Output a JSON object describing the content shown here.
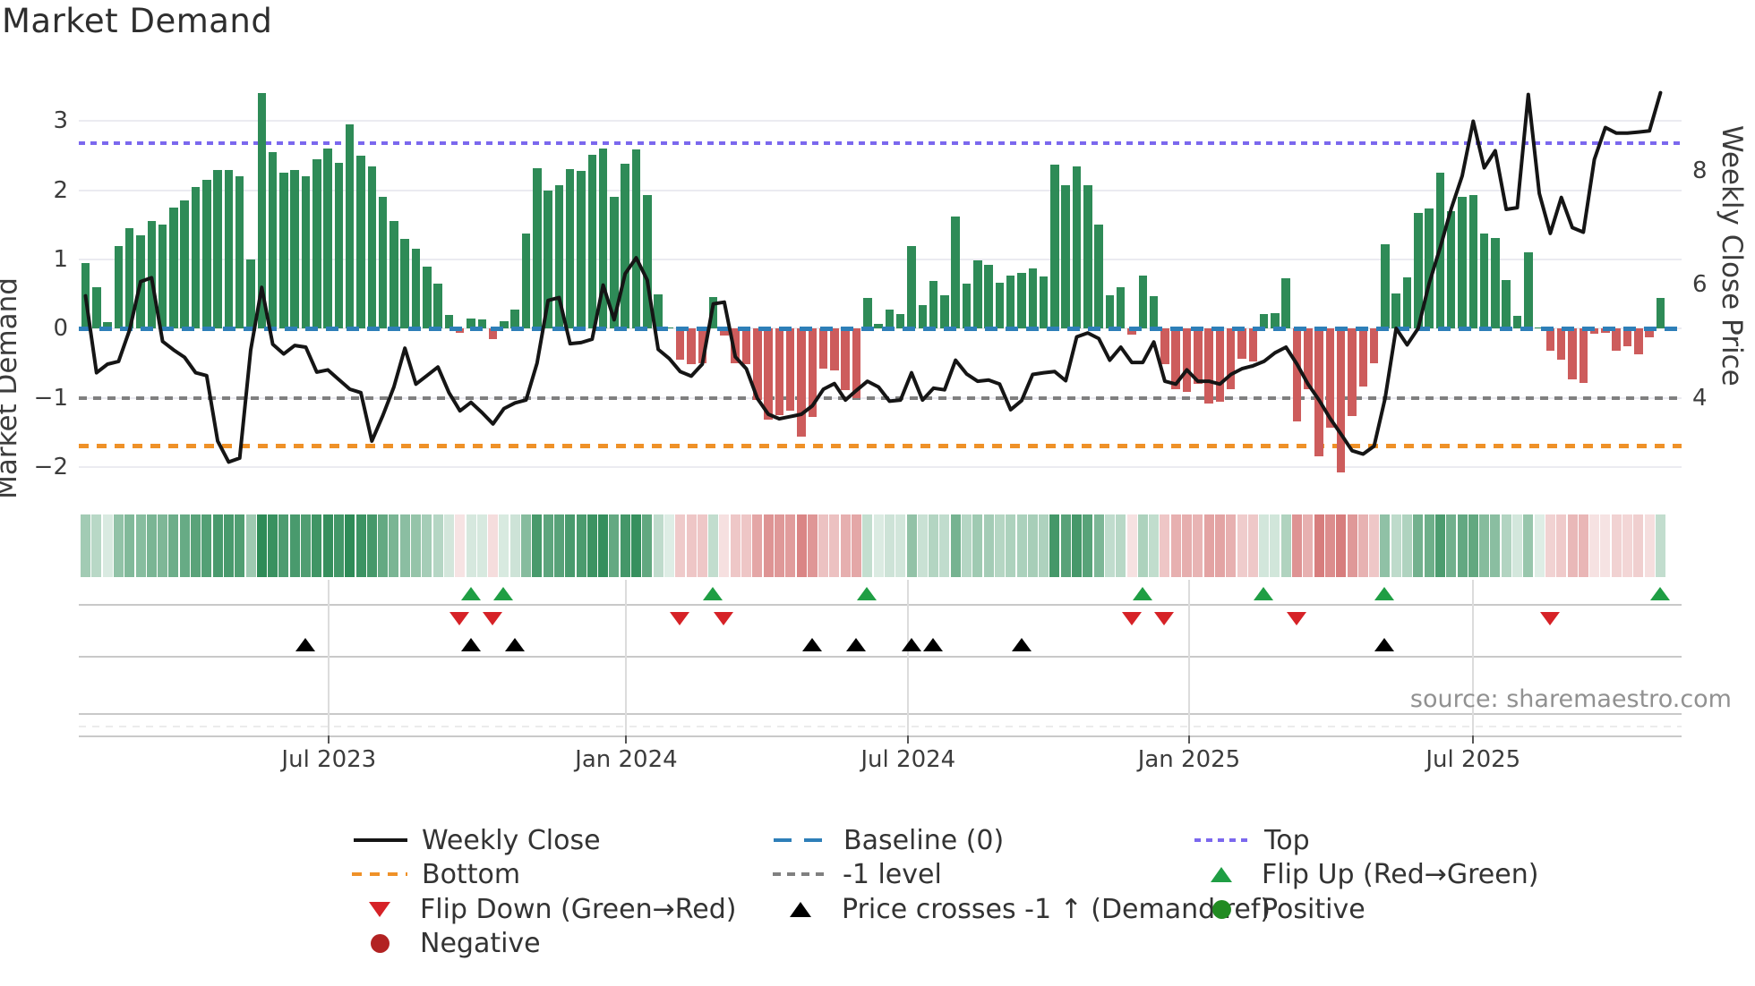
{
  "title": "Market Demand",
  "source_text": "source: sharemaestro.com",
  "axes": {
    "left_label": "Market Demand",
    "right_label": "Weekly Close Price",
    "left_ticks": [
      "3",
      "2",
      "1",
      "0",
      "−1",
      "−2"
    ],
    "left_tick_values": [
      3,
      2,
      1,
      0,
      -1,
      -2
    ],
    "right_ticks": [
      "8",
      "6",
      "4"
    ],
    "right_tick_values": [
      8,
      6,
      4
    ]
  },
  "colors": {
    "positive_bar": "#2e8b57",
    "negative_bar": "#cd5c5c",
    "price_line": "#151515",
    "baseline": "#2e7fb8",
    "top_level": "#7b68ee",
    "bottom_level": "#ef9128",
    "minus_one_level": "#808080",
    "flip_up": "#1f9e44",
    "flip_down": "#d62227",
    "price_cross": "#000000",
    "negative_dot": "#b22222",
    "positive_dot": "#228b22"
  },
  "legend": {
    "col1": [
      {
        "label": "Weekly Close",
        "marker": "line-black"
      },
      {
        "label": "Bottom",
        "marker": "dash-orange"
      },
      {
        "label": "Flip Down (Green→Red)",
        "marker": "tri-down-red"
      },
      {
        "label": "Negative",
        "marker": "circle-darkred"
      }
    ],
    "col2": [
      {
        "label": "Baseline (0)",
        "marker": "dash-blue"
      },
      {
        "label": "-1 level",
        "marker": "dash-gray"
      },
      {
        "label": "Price crosses -1 ↑ (Demand ref)",
        "marker": "tri-up-black"
      }
    ],
    "col3": [
      {
        "label": "Top",
        "marker": "dot-purple"
      },
      {
        "label": "Flip Up (Red→Green)",
        "marker": "tri-up-green"
      },
      {
        "label": "Positive",
        "marker": "circle-green"
      }
    ]
  },
  "chart_data": {
    "type": "bar+line",
    "title": "Market Demand",
    "ylabel_left": "Market Demand",
    "ylabel_right": "Weekly Close Price",
    "ylim_demand": [
      -2.52,
      3.93
    ],
    "ylim_price": [
      2.16,
      10.0
    ],
    "grid": "horizontal",
    "legend_position": "bottom",
    "levels": {
      "baseline": 0,
      "top": 2.68,
      "bottom": -1.7,
      "minus_one": -1
    },
    "x_ticks": [
      "Jul 2023",
      "Jan 2024",
      "Jul 2024",
      "Jan 2025",
      "Jul 2025"
    ],
    "x_tick_indices": [
      22.1,
      49.1,
      74.7,
      100.2,
      126.0
    ],
    "series": [
      {
        "name": "Market Demand (weekly bars)",
        "type": "bar",
        "values": [
          0.95,
          0.6,
          0.1,
          1.2,
          1.45,
          1.35,
          1.55,
          1.5,
          1.75,
          1.85,
          2.05,
          2.15,
          2.3,
          2.3,
          2.2,
          1.0,
          3.4,
          2.55,
          2.25,
          2.3,
          2.2,
          2.45,
          2.6,
          2.4,
          2.95,
          2.5,
          2.35,
          1.9,
          1.55,
          1.3,
          1.15,
          0.9,
          0.65,
          0.2,
          -0.06,
          0.15,
          0.13,
          -0.15,
          0.11,
          0.28,
          1.37,
          2.32,
          2.0,
          2.08,
          2.31,
          2.28,
          2.51,
          2.61,
          1.9,
          2.38,
          2.59,
          1.93,
          0.5,
          0.02,
          -0.45,
          -0.52,
          -0.5,
          0.46,
          -0.1,
          -0.5,
          -0.52,
          -1.03,
          -1.32,
          -1.25,
          -1.19,
          -1.56,
          -1.28,
          -0.58,
          -0.6,
          -0.89,
          -1.01,
          0.44,
          0.07,
          0.28,
          0.21,
          1.19,
          0.34,
          0.69,
          0.48,
          1.62,
          0.65,
          0.99,
          0.92,
          0.66,
          0.77,
          0.8,
          0.87,
          0.76,
          2.37,
          2.08,
          2.35,
          2.07,
          1.51,
          0.48,
          0.6,
          -0.09,
          0.77,
          0.47,
          -0.52,
          -0.87,
          -0.91,
          -0.8,
          -1.08,
          -1.06,
          -0.87,
          -0.43,
          -0.48,
          0.21,
          0.22,
          0.73,
          -1.34,
          -0.87,
          -1.84,
          -1.43,
          -2.08,
          -1.26,
          -0.84,
          -0.5,
          1.22,
          0.51,
          0.74,
          1.67,
          1.74,
          2.26,
          1.7,
          1.91,
          1.93,
          1.38,
          1.31,
          0.7,
          0.19,
          1.1,
          0.02,
          -0.32,
          -0.45,
          -0.74,
          -0.78,
          -0.08,
          -0.06,
          -0.32,
          -0.26,
          -0.37,
          -0.13,
          0.45
        ]
      },
      {
        "name": "Weekly Close",
        "type": "line",
        "values": [
          5.8,
          4.45,
          4.6,
          4.65,
          5.2,
          6.05,
          6.12,
          5.0,
          4.85,
          4.72,
          4.45,
          4.4,
          3.25,
          2.88,
          2.95,
          4.85,
          5.95,
          4.95,
          4.78,
          4.93,
          4.9,
          4.46,
          4.5,
          4.33,
          4.16,
          4.1,
          3.25,
          3.7,
          4.2,
          4.88,
          4.25,
          4.4,
          4.55,
          4.1,
          3.78,
          3.93,
          3.75,
          3.55,
          3.82,
          3.92,
          3.97,
          4.62,
          5.72,
          5.77,
          4.96,
          4.98,
          5.04,
          5.99,
          5.38,
          6.19,
          6.47,
          6.08,
          4.86,
          4.7,
          4.47,
          4.39,
          4.6,
          5.66,
          5.69,
          4.73,
          4.52,
          4.0,
          3.72,
          3.64,
          3.68,
          3.72,
          3.87,
          4.16,
          4.26,
          3.97,
          4.14,
          4.3,
          4.2,
          3.95,
          3.97,
          4.45,
          3.97,
          4.18,
          4.15,
          4.67,
          4.43,
          4.3,
          4.32,
          4.25,
          3.8,
          3.96,
          4.42,
          4.45,
          4.47,
          4.31,
          5.08,
          5.15,
          5.05,
          4.67,
          4.9,
          4.63,
          4.63,
          4.99,
          4.3,
          4.25,
          4.5,
          4.3,
          4.3,
          4.25,
          4.42,
          4.52,
          4.57,
          4.65,
          4.8,
          4.9,
          4.6,
          4.25,
          3.97,
          3.65,
          3.37,
          3.08,
          3.02,
          3.16,
          4.0,
          5.23,
          4.94,
          5.23,
          6.02,
          6.65,
          7.33,
          7.91,
          8.87,
          8.05,
          8.35,
          7.32,
          7.35,
          9.34,
          7.6,
          6.9,
          7.53,
          7.0,
          6.92,
          8.2,
          8.76,
          8.66,
          8.66,
          8.68,
          8.7,
          9.37
        ]
      }
    ],
    "markers": {
      "flip_up_indices": [
        35,
        38,
        57,
        71,
        96,
        107,
        118,
        143
      ],
      "flip_down_indices": [
        34,
        37,
        54,
        58,
        95,
        98,
        110,
        133
      ],
      "price_cross_indices": [
        20,
        35,
        39,
        66,
        70,
        75,
        77,
        85,
        118
      ]
    },
    "heatmap": "weekly demand values rendered as green/red intensity strip"
  }
}
